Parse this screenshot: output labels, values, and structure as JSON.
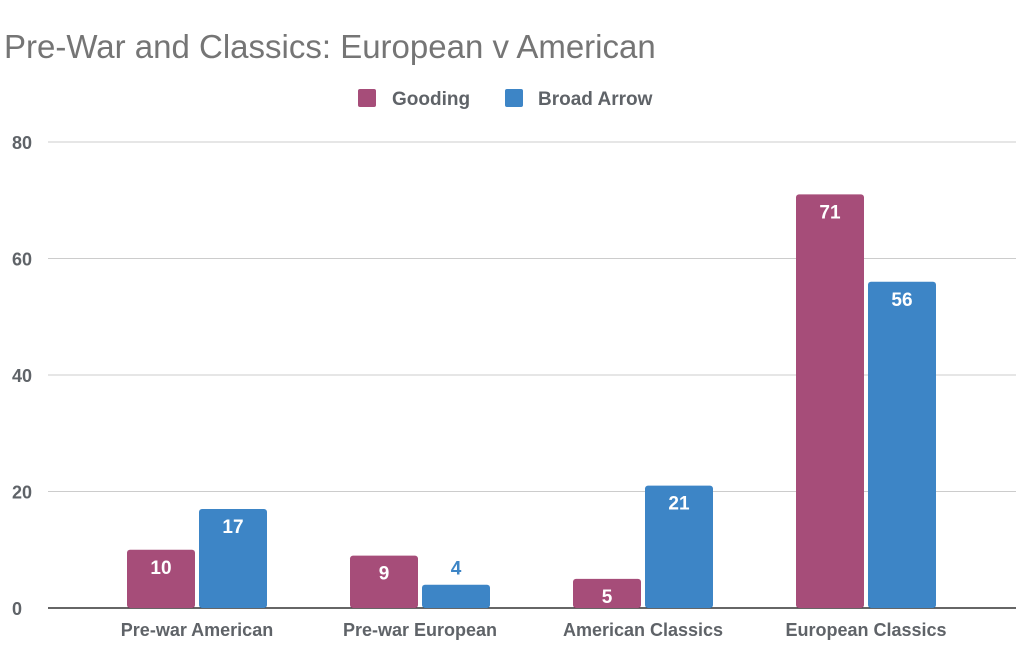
{
  "chart_data": {
    "type": "bar",
    "title": "Pre-War and Classics: European v American",
    "xlabel": "",
    "ylabel": "",
    "categories": [
      "Pre-war American",
      "Pre-war European",
      "American Classics",
      "European Classics"
    ],
    "series": [
      {
        "name": "Gooding",
        "values": [
          10,
          9,
          5,
          71
        ],
        "color": "#a64d79"
      },
      {
        "name": "Broad Arrow",
        "values": [
          17,
          4,
          21,
          56
        ],
        "color": "#3d85c6"
      }
    ],
    "ylim": [
      0,
      80
    ],
    "yticks": [
      0,
      20,
      40,
      60,
      80
    ],
    "grid": true,
    "legend_position": "top-center",
    "data_labels": true
  }
}
